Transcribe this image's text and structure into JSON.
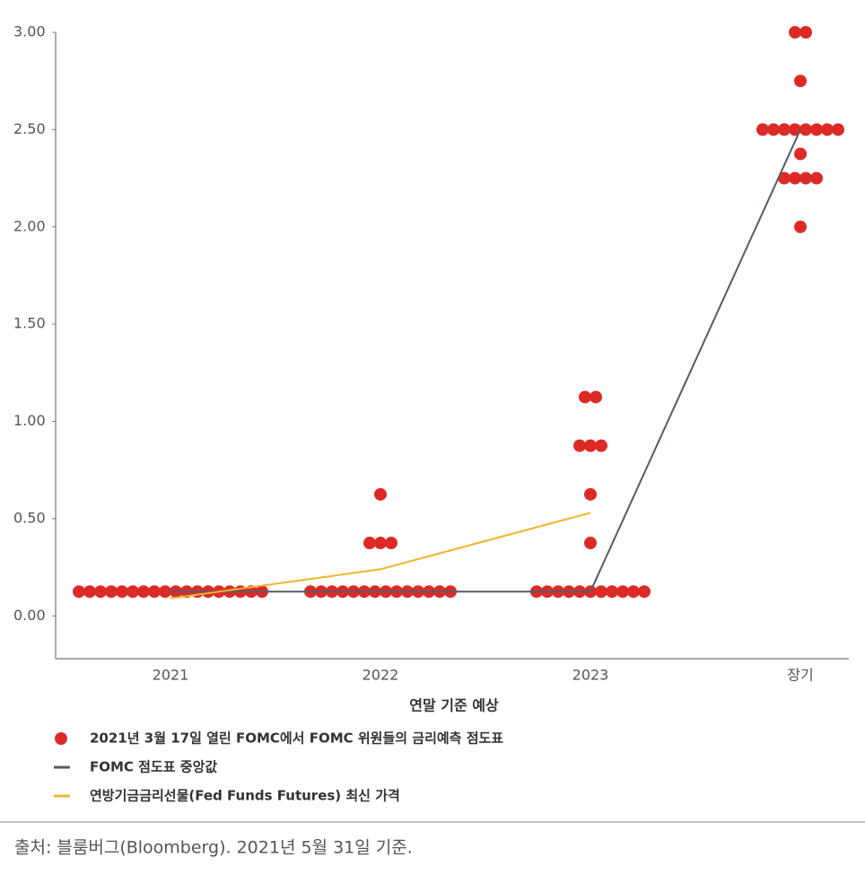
{
  "chart_data": {
    "type": "dot-plot",
    "x_label": "연말 기준 예상",
    "categories": [
      "2021",
      "2022",
      "2023",
      "장기"
    ],
    "ylim": [
      -0.22,
      3.0
    ],
    "yticks": [
      {
        "value": 0,
        "label": "0.00"
      },
      {
        "value": 0.5,
        "label": "0.50"
      },
      {
        "value": 1,
        "label": "1.00"
      },
      {
        "value": 1.5,
        "label": "1.50"
      },
      {
        "value": 2,
        "label": "2.00"
      },
      {
        "value": 2.5,
        "label": "2.50"
      },
      {
        "value": 3,
        "label": "3.00"
      }
    ],
    "series": [
      {
        "name": "2021년 3월 17일 열린 FOMC에서 FOMC 위원들의 금리예측 점도표",
        "type": "dots",
        "color": "#dc2a27",
        "values": [
          [
            0.125,
            0.125,
            0.125,
            0.125,
            0.125,
            0.125,
            0.125,
            0.125,
            0.125,
            0.125,
            0.125,
            0.125,
            0.125,
            0.125,
            0.125,
            0.125,
            0.125,
            0.125
          ],
          [
            0.625,
            0.375,
            0.375,
            0.375,
            0.125,
            0.125,
            0.125,
            0.125,
            0.125,
            0.125,
            0.125,
            0.125,
            0.125,
            0.125,
            0.125,
            0.125,
            0.125,
            0.125
          ],
          [
            1.125,
            1.125,
            0.875,
            0.875,
            0.875,
            0.625,
            0.375,
            0.125,
            0.125,
            0.125,
            0.125,
            0.125,
            0.125,
            0.125,
            0.125,
            0.125,
            0.125,
            0.125
          ],
          [
            3.0,
            3.0,
            2.75,
            2.5,
            2.5,
            2.5,
            2.5,
            2.5,
            2.5,
            2.5,
            2.5,
            2.375,
            2.25,
            2.25,
            2.25,
            2.25,
            2.0
          ]
        ]
      },
      {
        "name": "FOMC 점도표 중앙값",
        "type": "line",
        "color": "#555c66",
        "values": [
          0.125,
          0.125,
          0.125,
          2.5
        ]
      },
      {
        "name": "연방기금금리선물(Fed Funds Futures) 최신 가격",
        "type": "line",
        "color": "#f0b429",
        "values": [
          0.09,
          0.24,
          0.53,
          null
        ]
      }
    ]
  },
  "source": "출처: 블룸버그(Bloomberg). 2021년 5월 31일 기준."
}
